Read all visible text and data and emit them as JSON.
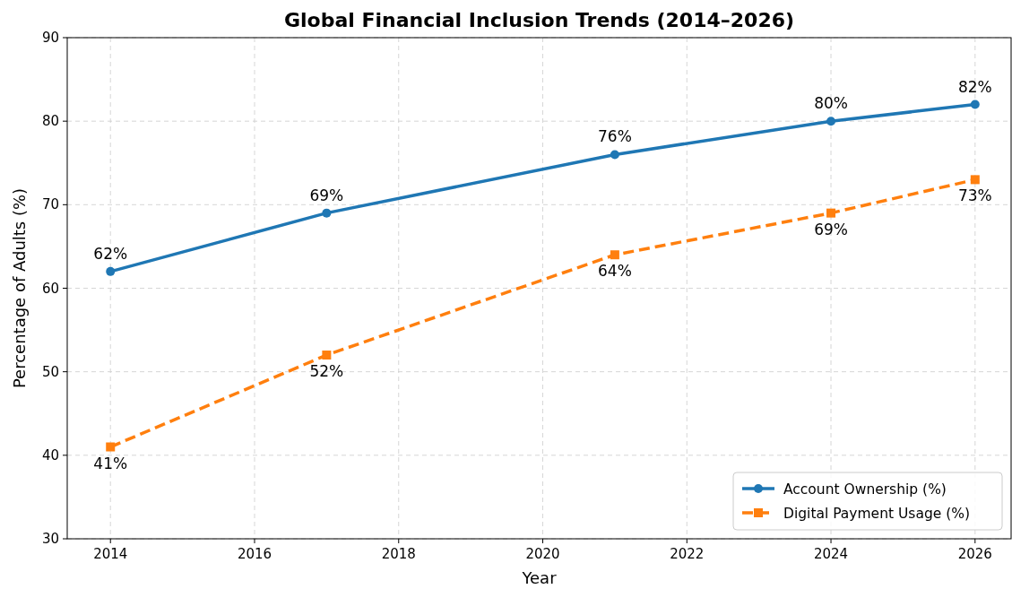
{
  "chart_data": {
    "type": "line",
    "title": "Global Financial Inclusion Trends (2014–2026)",
    "xlabel": "Year",
    "ylabel": "Percentage of Adults (%)",
    "x": [
      2014,
      2017,
      2021,
      2024,
      2026
    ],
    "series": [
      {
        "name": "Account Ownership (%)",
        "color": "#1f77b4",
        "values": [
          62,
          69,
          76,
          80,
          82
        ],
        "marker": "circle",
        "line_style": "solid",
        "value_labels": [
          "62%",
          "69%",
          "76%",
          "80%",
          "82%"
        ]
      },
      {
        "name": "Digital Payment Usage (%)",
        "color": "#ff7f0e",
        "values": [
          41,
          52,
          64,
          69,
          73
        ],
        "marker": "square",
        "line_style": "dashed",
        "value_labels": [
          "41%",
          "52%",
          "64%",
          "69%",
          "73%"
        ]
      }
    ],
    "xlim": [
      2013.4,
      2026.5
    ],
    "xticks": [
      2014,
      2016,
      2018,
      2020,
      2022,
      2024,
      2026
    ],
    "ylim": [
      30,
      90
    ],
    "yticks": [
      30,
      40,
      50,
      60,
      70,
      80,
      90
    ],
    "grid": true,
    "legend": "bottom right"
  }
}
